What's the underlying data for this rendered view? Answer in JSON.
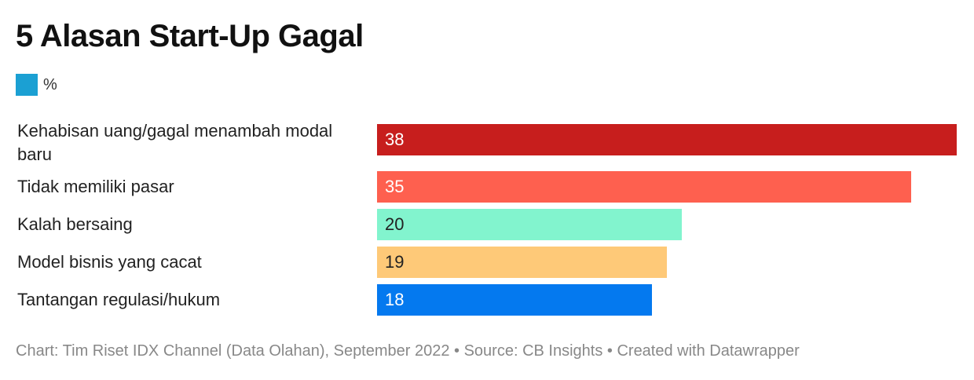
{
  "chart_data": {
    "type": "bar",
    "orientation": "horizontal",
    "title": "5 Alasan Start-Up Gagal",
    "legend": [
      {
        "label": "%",
        "color": "#1ba0d3"
      }
    ],
    "categories": [
      "Kehabisan uang/gagal menambah modal baru",
      "Tidak memiliki pasar",
      "Kalah bersaing",
      "Model bisnis yang cacat",
      "Tantangan regulasi/hukum"
    ],
    "values": [
      38,
      35,
      20,
      19,
      18
    ],
    "value_labels": [
      "38",
      "35",
      "20",
      "19",
      "18"
    ],
    "colors": [
      "#c71e1d",
      "#fe604f",
      "#82f4ce",
      "#fec978",
      "#0479ef"
    ],
    "value_label_colors": [
      "#ffffff",
      "#ffffff",
      "#222222",
      "#222222",
      "#ffffff"
    ],
    "xlim": [
      0,
      38
    ],
    "grid": false,
    "legend_position": "top-left",
    "footer": "Chart: Tim Riset IDX Channel (Data Olahan), September 2022 • Source: CB Insights • Created with Datawrapper"
  }
}
